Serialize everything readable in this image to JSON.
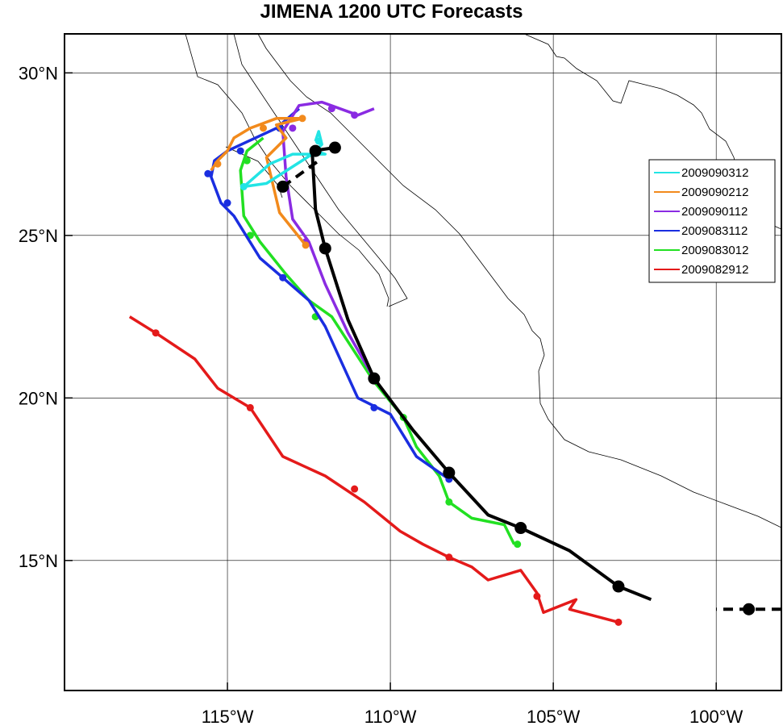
{
  "title": "JIMENA 1200 UTC Forecasts",
  "axes": {
    "lon_range": [
      -120,
      -98
    ],
    "lat_range": [
      11,
      31.2
    ],
    "x_ticks": [
      {
        "value": -115,
        "label": "115°W"
      },
      {
        "value": -110,
        "label": "110°W"
      },
      {
        "value": -105,
        "label": "105°W"
      },
      {
        "value": -100,
        "label": "100°W"
      }
    ],
    "y_ticks": [
      {
        "value": 15,
        "label": "15°N"
      },
      {
        "value": 20,
        "label": "20°N"
      },
      {
        "value": 25,
        "label": "25°N"
      },
      {
        "value": 30,
        "label": "30°N"
      }
    ],
    "grid": true
  },
  "legend": {
    "placement": "right",
    "items": [
      {
        "label": "2009090312",
        "color": "#22e4e4"
      },
      {
        "label": "2009090212",
        "color": "#f28a1c"
      },
      {
        "label": "2009090112",
        "color": "#8a2be2"
      },
      {
        "label": "2009083112",
        "color": "#1a2ee0"
      },
      {
        "label": "2009083012",
        "color": "#22e022"
      },
      {
        "label": "2009082912",
        "color": "#e41a1a"
      }
    ]
  },
  "chart_data": {
    "type": "map-tracks",
    "title": "JIMENA 1200 UTC Forecasts",
    "xlabel": "",
    "ylabel": "",
    "xlim": [
      -120,
      -98
    ],
    "ylim": [
      11,
      31.2
    ],
    "best_track": {
      "color": "#000000",
      "points": [
        [
          -98,
          13.5
        ],
        [
          -99,
          13.5
        ],
        [
          -102,
          13.8
        ],
        [
          -103,
          14.2
        ],
        [
          -104.5,
          15.3
        ],
        [
          -106,
          16
        ],
        [
          -107,
          16.4
        ],
        [
          -108.2,
          17.7
        ],
        [
          -109.3,
          19.0
        ],
        [
          -110.5,
          20.6
        ],
        [
          -111.3,
          22.4
        ],
        [
          -112,
          24.6
        ],
        [
          -112.3,
          25.8
        ],
        [
          -112.4,
          27.6
        ],
        [
          -111.7,
          27.7
        ]
      ],
      "markers": [
        [
          -99,
          13.5
        ],
        [
          -103,
          14.2
        ],
        [
          -106,
          16
        ],
        [
          -108.2,
          17.7
        ],
        [
          -110.5,
          20.6
        ],
        [
          -112,
          24.6
        ],
        [
          -112.3,
          27.6
        ],
        [
          -111.7,
          27.7
        ],
        [
          -113.3,
          26.5
        ]
      ],
      "dashed": [
        [
          [
            -98,
            13.5
          ],
          [
            -100,
            13.5
          ]
        ],
        [
          [
            -113.3,
            26.5
          ],
          [
            -112.2,
            27.3
          ]
        ]
      ]
    },
    "series": [
      {
        "name": "2009090312",
        "color": "#22e4e4",
        "points": [
          [
            -112.3,
            27.6
          ],
          [
            -112.0,
            27.5
          ],
          [
            -113.0,
            27.5
          ],
          [
            -113.7,
            27.2
          ],
          [
            -114.5,
            26.5
          ],
          [
            -113.8,
            26.6
          ],
          [
            -112.4,
            27.5
          ],
          [
            -112.1,
            27.8
          ],
          [
            -112.2,
            28.2
          ],
          [
            -112.3,
            27.9
          ]
        ],
        "markers": [
          [
            -114.5,
            26.5
          ],
          [
            -112.2,
            27.9
          ]
        ]
      },
      {
        "name": "2009090212",
        "color": "#f28a1c",
        "points": [
          [
            -112.6,
            24.7
          ],
          [
            -113.4,
            25.7
          ],
          [
            -113.8,
            27.4
          ],
          [
            -113.2,
            28.0
          ],
          [
            -113.5,
            28.4
          ],
          [
            -112.7,
            28.6
          ],
          [
            -113.5,
            28.6
          ],
          [
            -114.3,
            28.3
          ],
          [
            -114.8,
            28.0
          ],
          [
            -115.0,
            27.6
          ],
          [
            -115.3,
            27.3
          ],
          [
            -115.5,
            27.0
          ]
        ],
        "markers": [
          [
            -112.6,
            24.7
          ],
          [
            -112.7,
            28.6
          ],
          [
            -113.9,
            28.3
          ],
          [
            -115.3,
            27.2
          ]
        ]
      },
      {
        "name": "2009090112",
        "color": "#8a2be2",
        "points": [
          [
            -110.5,
            20.6
          ],
          [
            -111.3,
            22.0
          ],
          [
            -112.0,
            23.5
          ],
          [
            -112.5,
            24.8
          ],
          [
            -113.0,
            25.5
          ],
          [
            -113.2,
            26.8
          ],
          [
            -113.3,
            28.2
          ],
          [
            -112.8,
            29.0
          ],
          [
            -112.1,
            29.1
          ],
          [
            -111.0,
            28.7
          ],
          [
            -110.5,
            28.9
          ]
        ],
        "markers": [
          [
            -112.6,
            24.8
          ],
          [
            -113.0,
            28.3
          ],
          [
            -111.8,
            28.9
          ],
          [
            -111.1,
            28.7
          ]
        ]
      },
      {
        "name": "2009083112",
        "color": "#1a2ee0",
        "points": [
          [
            -108.2,
            17.5
          ],
          [
            -109.2,
            18.2
          ],
          [
            -110.0,
            19.5
          ],
          [
            -111.0,
            20.0
          ],
          [
            -112.0,
            22.2
          ],
          [
            -112.5,
            23.0
          ],
          [
            -113.3,
            23.7
          ],
          [
            -114.0,
            24.3
          ],
          [
            -114.8,
            25.6
          ],
          [
            -115.2,
            26.0
          ],
          [
            -115.5,
            26.8
          ],
          [
            -115.4,
            27.3
          ],
          [
            -115.0,
            27.6
          ],
          [
            -113.5,
            28.3
          ],
          [
            -112.8,
            28.9
          ]
        ],
        "markers": [
          [
            -108.2,
            17.5
          ],
          [
            -110.5,
            19.7
          ],
          [
            -113.3,
            23.7
          ],
          [
            -115.0,
            26.0
          ],
          [
            -115.6,
            26.9
          ],
          [
            -114.6,
            27.6
          ],
          [
            -113.4,
            28.3
          ]
        ]
      },
      {
        "name": "2009083012",
        "color": "#22e022",
        "points": [
          [
            -106.2,
            15.5
          ],
          [
            -106.5,
            16.1
          ],
          [
            -107.5,
            16.3
          ],
          [
            -108.2,
            16.8
          ],
          [
            -108.5,
            17.6
          ],
          [
            -109.2,
            18.5
          ],
          [
            -109.6,
            19.4
          ],
          [
            -110.5,
            20.5
          ],
          [
            -111.8,
            22.5
          ],
          [
            -112.5,
            23.0
          ],
          [
            -113.2,
            23.8
          ],
          [
            -114.0,
            24.8
          ],
          [
            -114.5,
            25.6
          ],
          [
            -114.6,
            27.0
          ],
          [
            -114.4,
            27.6
          ],
          [
            -113.9,
            28.0
          ]
        ],
        "markers": [
          [
            -106.1,
            15.5
          ],
          [
            -108.2,
            16.8
          ],
          [
            -109.6,
            19.4
          ],
          [
            -112.3,
            22.5
          ],
          [
            -114.3,
            25.0
          ],
          [
            -114.4,
            27.3
          ]
        ]
      },
      {
        "name": "2009082912",
        "color": "#e41a1a",
        "points": [
          [
            -103,
            13.1
          ],
          [
            -104.5,
            13.5
          ],
          [
            -104.3,
            13.8
          ],
          [
            -105.3,
            13.4
          ],
          [
            -105.5,
            14.0
          ],
          [
            -106,
            14.7
          ],
          [
            -107,
            14.4
          ],
          [
            -107.5,
            14.8
          ],
          [
            -108.2,
            15.1
          ],
          [
            -109.0,
            15.5
          ],
          [
            -109.7,
            15.9
          ],
          [
            -110.8,
            16.8
          ],
          [
            -112.0,
            17.6
          ],
          [
            -113.3,
            18.2
          ],
          [
            -114.3,
            19.7
          ],
          [
            -115.3,
            20.3
          ],
          [
            -116.0,
            21.2
          ],
          [
            -117.2,
            22.0
          ],
          [
            -118,
            22.5
          ]
        ],
        "markers": [
          [
            -103,
            13.1
          ],
          [
            -105.5,
            13.9
          ],
          [
            -108.2,
            15.1
          ],
          [
            -111.1,
            17.2
          ],
          [
            -114.3,
            19.7
          ],
          [
            -117.2,
            22.0
          ]
        ]
      }
    ]
  }
}
